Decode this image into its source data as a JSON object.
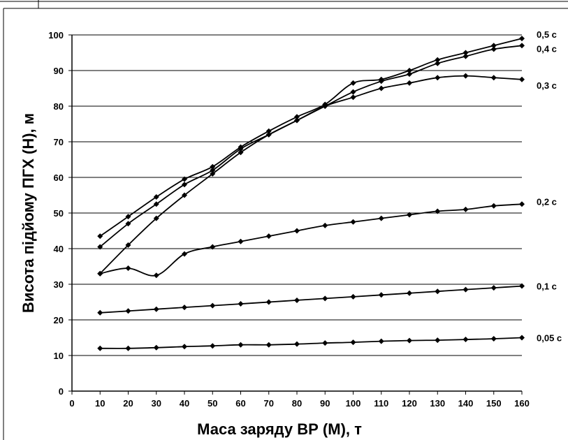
{
  "chart_data": {
    "type": "line",
    "title": "",
    "xlabel": "Маса заряду ВР (М), т",
    "ylabel": "Висота підйому ПГХ (Н), м",
    "xlim": [
      0,
      160
    ],
    "ylim": [
      0,
      100
    ],
    "x_ticks": [
      0,
      10,
      20,
      30,
      40,
      50,
      60,
      70,
      80,
      90,
      100,
      110,
      120,
      130,
      140,
      150,
      160
    ],
    "y_ticks": [
      0,
      10,
      20,
      30,
      40,
      50,
      60,
      70,
      80,
      90,
      100
    ],
    "grid": "horizontal",
    "marker": "diamond",
    "x": [
      10,
      20,
      30,
      40,
      50,
      60,
      70,
      80,
      90,
      100,
      110,
      120,
      130,
      140,
      150,
      160
    ],
    "series": [
      {
        "name": "0,5 с",
        "values": [
          43.5,
          49,
          54.5,
          59.5,
          63,
          68.5,
          73,
          77,
          80.5,
          86.5,
          87.5,
          90,
          93,
          95,
          97,
          99
        ]
      },
      {
        "name": "0,4 с",
        "values": [
          40.5,
          47,
          52.5,
          58,
          62,
          68,
          72,
          76,
          80,
          84,
          87,
          89,
          92,
          94,
          96,
          97
        ]
      },
      {
        "name": "0,3 с",
        "values": [
          33,
          41,
          48.5,
          55,
          61,
          67,
          72,
          76,
          80,
          82.5,
          85,
          86.5,
          88,
          88.5,
          88,
          87.5
        ]
      },
      {
        "name": "0,2 с",
        "values": [
          33,
          34.5,
          32.5,
          38.5,
          40.5,
          42,
          43.5,
          45,
          46.5,
          47.5,
          48.5,
          49.5,
          50.5,
          51,
          52,
          52.5
        ]
      },
      {
        "name": "0,1 с",
        "values": [
          22,
          22.5,
          23,
          23.5,
          24,
          24.5,
          25,
          25.5,
          26,
          26.5,
          27,
          27.5,
          28,
          28.5,
          29,
          29.5
        ]
      },
      {
        "name": "0,05 с",
        "values": [
          12,
          12,
          12.2,
          12.5,
          12.7,
          13,
          13,
          13.2,
          13.5,
          13.7,
          14,
          14.2,
          14.3,
          14.5,
          14.7,
          15
        ]
      }
    ]
  },
  "colors": {
    "line": "#000000",
    "grid": "#000000",
    "background": "#ffffff"
  }
}
